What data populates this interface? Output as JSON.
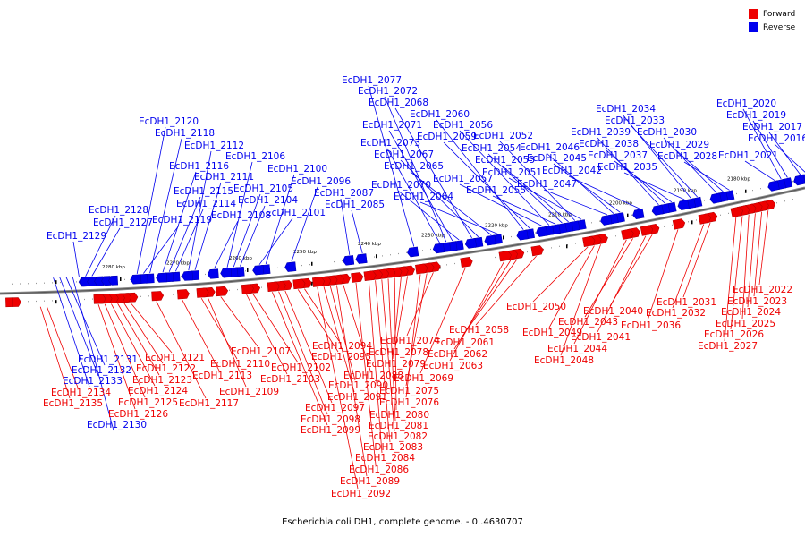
{
  "caption": "Escherichia coli DH1, complete genome. - 0..4630707",
  "legend": {
    "forward_label": "Forward",
    "reverse_label": "Reverse",
    "forward_color": "#ee0000",
    "reverse_color": "#0000ee"
  },
  "kbp_marks": [
    "2180 kbp",
    "2190 kbp",
    "2200 kbp",
    "2210 kbp",
    "2220 kbp",
    "2230 kbp",
    "2240 kbp",
    "2250 kbp",
    "2260 kbp",
    "2270 kbp",
    "2280 kbp"
  ],
  "reverse_genes": [
    "EcDH1_2016",
    "EcDH1_2017",
    "EcDH1_2019",
    "EcDH1_2020",
    "EcDH1_2021",
    "EcDH1_2028",
    "EcDH1_2029",
    "EcDH1_2030",
    "EcDH1_2033",
    "EcDH1_2034",
    "EcDH1_2035",
    "EcDH1_2037",
    "EcDH1_2038",
    "EcDH1_2039",
    "EcDH1_2042",
    "EcDH1_2045",
    "EcDH1_2046",
    "EcDH1_2047",
    "EcDH1_2051",
    "EcDH1_2052",
    "EcDH1_2053",
    "EcDH1_2054",
    "EcDH1_2055",
    "EcDH1_2056",
    "EcDH1_2057",
    "EcDH1_2059",
    "EcDH1_2060",
    "EcDH1_2064",
    "EcDH1_2065",
    "EcDH1_2067",
    "EcDH1_2068",
    "EcDH1_2070",
    "EcDH1_2071",
    "EcDH1_2072",
    "EcDH1_2073",
    "EcDH1_2077",
    "EcDH1_2085",
    "EcDH1_2087",
    "EcDH1_2096",
    "EcDH1_2100",
    "EcDH1_2101",
    "EcDH1_2104",
    "EcDH1_2105",
    "EcDH1_2106",
    "EcDH1_2108",
    "EcDH1_2111",
    "EcDH1_2112",
    "EcDH1_2114",
    "EcDH1_2115",
    "EcDH1_2116",
    "EcDH1_2118",
    "EcDH1_2119",
    "EcDH1_2120",
    "EcDH1_2127",
    "EcDH1_2128",
    "EcDH1_2129",
    "EcDH1_2130",
    "EcDH1_2131",
    "EcDH1_2132",
    "EcDH1_2133"
  ],
  "forward_genes": [
    "EcDH1_2022",
    "EcDH1_2023",
    "EcDH1_2024",
    "EcDH1_2025",
    "EcDH1_2026",
    "EcDH1_2027",
    "EcDH1_2031",
    "EcDH1_2032",
    "EcDH1_2036",
    "EcDH1_2040",
    "EcDH1_2041",
    "EcDH1_2043",
    "EcDH1_2044",
    "EcDH1_2048",
    "EcDH1_2049",
    "EcDH1_2050",
    "EcDH1_2058",
    "EcDH1_2061",
    "EcDH1_2062",
    "EcDH1_2063",
    "EcDH1_2069",
    "EcDH1_2074",
    "EcDH1_2075",
    "EcDH1_2076",
    "EcDH1_2078",
    "EcDH1_2079",
    "EcDH1_2080",
    "EcDH1_2081",
    "EcDH1_2082",
    "EcDH1_2083",
    "EcDH1_2084",
    "EcDH1_2086",
    "EcDH1_2088",
    "EcDH1_2089",
    "EcDH1_2090",
    "EcDH1_2091",
    "EcDH1_2092",
    "EcDH1_2094",
    "EcDH1_2095",
    "EcDH1_2097",
    "EcDH1_2098",
    "EcDH1_2099",
    "EcDH1_2102",
    "EcDH1_2103",
    "EcDH1_2107",
    "EcDH1_2109",
    "EcDH1_2110",
    "EcDH1_2113",
    "EcDH1_2117",
    "EcDH1_2121",
    "EcDH1_2122",
    "EcDH1_2123",
    "EcDH1_2124",
    "EcDH1_2125",
    "EcDH1_2126",
    "EcDH1_2134",
    "EcDH1_2135"
  ]
}
